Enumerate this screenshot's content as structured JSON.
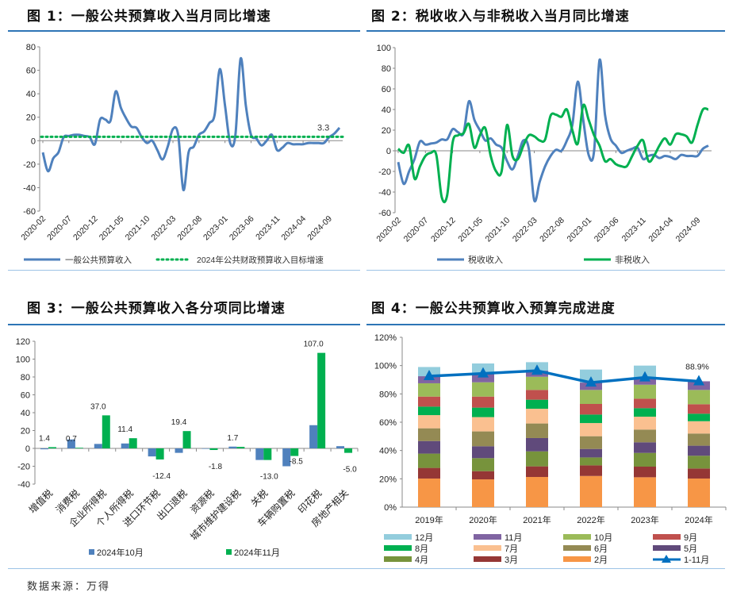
{
  "source": "数据来源：万得",
  "chart_data": [
    {
      "id": "c1",
      "type": "line",
      "title": "图 1：一般公共预算收入当月同比增速",
      "x_start": "2020-02",
      "x_ticks": [
        "2020-02",
        "2020-07",
        "2020-12",
        "2021-05",
        "2021-10",
        "2022-03",
        "2022-08",
        "2023-01",
        "2023-06",
        "2023-11",
        "2024-04",
        "2024-09"
      ],
      "ylim": [
        -60,
        80
      ],
      "y_ticks": [
        -60,
        -40,
        -20,
        0,
        20,
        40,
        60,
        80
      ],
      "series": [
        {
          "name": "一般公共预算收入",
          "color": "#4f81bd",
          "style": "solid",
          "values": [
            -10,
            -26,
            -15,
            -10,
            3,
            4,
            5,
            5,
            4,
            3,
            -3,
            18,
            18,
            17,
            42,
            28,
            19,
            12,
            11,
            3,
            -2,
            0,
            -8,
            -16,
            -5,
            10,
            5,
            -42,
            -10,
            -5,
            5,
            8,
            15,
            22,
            61,
            30,
            -2,
            5,
            70,
            30,
            5,
            2,
            -4,
            0,
            5,
            -8,
            -6,
            -2,
            -3,
            -3,
            -3,
            -2,
            -2,
            -2,
            -2,
            3,
            6,
            11
          ]
        },
        {
          "name": "2024年公共财政预算收入目标增速",
          "color": "#00b050",
          "style": "dotted",
          "constant": 3.3
        }
      ],
      "annotation": "3.3"
    },
    {
      "id": "c2",
      "type": "line",
      "title": "图 2：税收收入与非税收入当月同比增速",
      "x_start": "2020-02",
      "x_ticks": [
        "2020-02",
        "2020-07",
        "2020-12",
        "2021-05",
        "2021-10",
        "2022-03",
        "2022-08",
        "2023-01",
        "2023-06",
        "2023-11",
        "2024-04",
        "2024-09"
      ],
      "ylim": [
        -60,
        100
      ],
      "y_ticks": [
        -60,
        -40,
        -20,
        0,
        20,
        40,
        60,
        80,
        100
      ],
      "series": [
        {
          "name": "税收收入",
          "color": "#4f81bd",
          "values": [
            -11,
            -32,
            -20,
            -8,
            9,
            6,
            7,
            8,
            11,
            11,
            21,
            18,
            17,
            48,
            30,
            20,
            10,
            12,
            6,
            3,
            -10,
            -18,
            -5,
            10,
            2,
            -48,
            -30,
            -15,
            -5,
            1,
            0,
            10,
            25,
            67,
            30,
            -4,
            0,
            88,
            35,
            12,
            5,
            -2,
            0,
            2,
            3,
            -8,
            -5,
            -4,
            -7,
            -5,
            -6,
            -8,
            -4,
            -5,
            -5,
            -5,
            2,
            5
          ]
        },
        {
          "name": "非税收入",
          "color": "#00b050",
          "values": [
            2,
            -2,
            5,
            -27,
            -15,
            -5,
            -2,
            -4,
            -45,
            -43,
            8,
            15,
            17,
            26,
            3,
            15,
            22,
            -5,
            -20,
            -20,
            25,
            -5,
            -8,
            5,
            15,
            14,
            10,
            11,
            34,
            35,
            33,
            40,
            20,
            7,
            44,
            30,
            15,
            5,
            -10,
            -8,
            -13,
            -15,
            -15,
            -5,
            5,
            10,
            -10,
            -5,
            5,
            12,
            6,
            16,
            16,
            14,
            8,
            25,
            40,
            40
          ]
        }
      ]
    },
    {
      "id": "c3",
      "type": "bar",
      "title": "图 3：一般公共预算收入各分项同比增速",
      "categories": [
        "增值税",
        "消费税",
        "企业所得税",
        "个人所得税",
        "进口环节税",
        "出口退税",
        "资源税",
        "城市维护建设税",
        "关税",
        "车辆购置税",
        "印花税",
        "房地产相关"
      ],
      "ylim": [
        -40,
        120
      ],
      "y_ticks": [
        -40,
        -20,
        0,
        20,
        40,
        60,
        80,
        100,
        120
      ],
      "series": [
        {
          "name": "2024年10月",
          "color": "#4f81bd",
          "values": [
            -1,
            10,
            5,
            5.5,
            -9,
            -5,
            -0.5,
            2,
            -13,
            -20,
            26,
            2.5
          ]
        },
        {
          "name": "2024年11月",
          "color": "#00b050",
          "values": [
            1.4,
            0.7,
            37.0,
            11.4,
            -12.4,
            19.4,
            -1.8,
            1.7,
            -13.0,
            -8.5,
            107.0,
            -5.0
          ],
          "labels": [
            "1.4",
            "0.7",
            "37.0",
            "11.4",
            "-12.4",
            "19.4",
            "-1.8",
            "1.7",
            "-13.0",
            "-8.5",
            "107.0",
            "-5.0"
          ]
        }
      ]
    },
    {
      "id": "c4",
      "type": "bar",
      "stacked": true,
      "title": "图 4：一般公共预算收入预算完成进度",
      "categories": [
        "2019年",
        "2020年",
        "2021年",
        "2022年",
        "2023年",
        "2024年"
      ],
      "ylim": [
        0,
        120
      ],
      "y_ticks": [
        "0%",
        "20%",
        "40%",
        "60%",
        "80%",
        "100%",
        "120%"
      ],
      "series": [
        {
          "name": "2月",
          "color": "#f79646",
          "values": [
            20.2,
            19.6,
            21.3,
            22.0,
            21.1,
            20.2
          ]
        },
        {
          "name": "3月",
          "color": "#953735",
          "values": [
            7.5,
            5.8,
            7.5,
            7.5,
            7.5,
            7.1
          ]
        },
        {
          "name": "4月",
          "color": "#77933c",
          "values": [
            10.1,
            9.2,
            10.6,
            5.6,
            9.7,
            9.0
          ]
        },
        {
          "name": "5月",
          "color": "#604a7b",
          "values": [
            8.9,
            8.4,
            9.4,
            6.0,
            7.5,
            7.1
          ]
        },
        {
          "name": "6月",
          "color": "#948a54",
          "values": [
            9.0,
            10.5,
            10.3,
            9.0,
            9.0,
            8.6
          ]
        },
        {
          "name": "7月",
          "color": "#fac090",
          "values": [
            9.3,
            10.1,
            10.4,
            9.3,
            9.1,
            8.7
          ]
        },
        {
          "name": "8月",
          "color": "#00b050",
          "values": [
            6.0,
            6.7,
            6.4,
            6.0,
            6.0,
            5.3
          ]
        },
        {
          "name": "9月",
          "color": "#c0504d",
          "values": [
            7.1,
            7.8,
            6.9,
            7.5,
            6.7,
            6.7
          ]
        },
        {
          "name": "10月",
          "color": "#9bbb59",
          "values": [
            9.4,
            10.1,
            9.3,
            9.9,
            9.9,
            10.1
          ]
        },
        {
          "name": "11月",
          "color": "#8064a2",
          "values": [
            5.0,
            6.2,
            4.3,
            5.2,
            5.1,
            6.1
          ]
        },
        {
          "name": "12月",
          "color": "#93cddd",
          "values": [
            6.5,
            7.1,
            6.0,
            9.2,
            8.4,
            0
          ]
        }
      ],
      "line": {
        "name": "1-11月",
        "color": "#0070c0",
        "values": [
          92.5,
          94.4,
          96.4,
          88.0,
          91.6,
          88.9
        ]
      },
      "annotation": "88.9%",
      "legend_order": [
        "12月",
        "11月",
        "10月",
        "9月",
        "8月",
        "7月",
        "6月",
        "5月",
        "4月",
        "3月",
        "2月"
      ]
    }
  ]
}
